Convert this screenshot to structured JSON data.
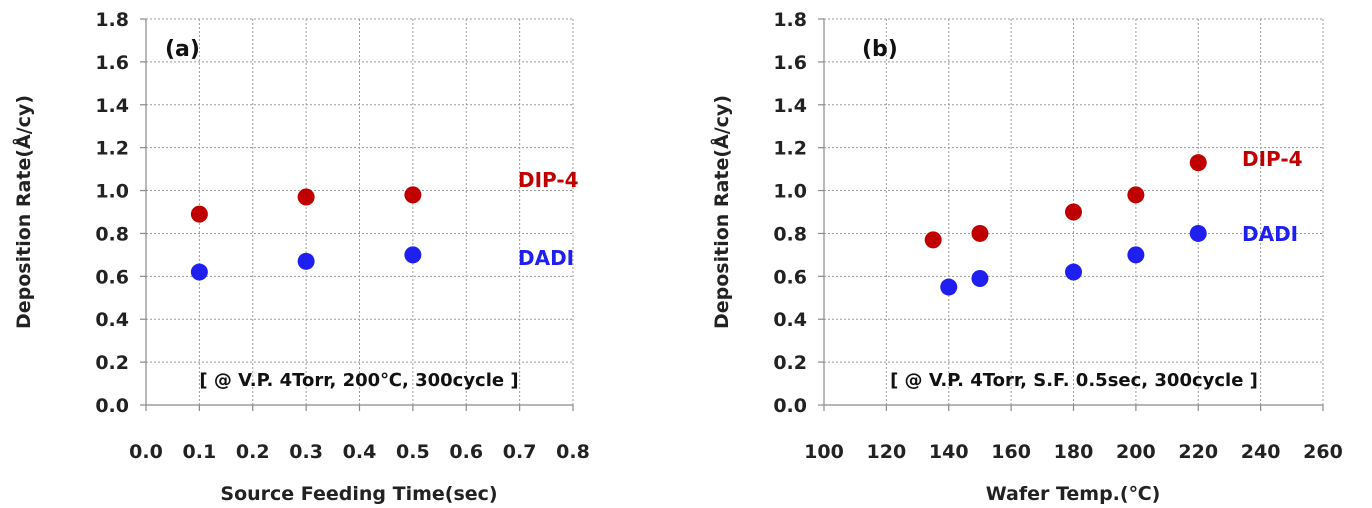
{
  "chart_data": [
    {
      "type": "scatter",
      "panel_label": "(a)",
      "xlabel": "Source Feeding Time(sec)",
      "ylabel": "Deposition Rate(Å/cy)",
      "xlim": [
        0.0,
        0.8
      ],
      "ylim": [
        0.0,
        1.8
      ],
      "xticks": [
        "0.0",
        "0.1",
        "0.2",
        "0.3",
        "0.4",
        "0.5",
        "0.6",
        "0.7",
        "0.8"
      ],
      "yticks": [
        "0.0",
        "0.2",
        "0.4",
        "0.6",
        "0.8",
        "1.0",
        "1.2",
        "1.4",
        "1.6",
        "1.8"
      ],
      "grid": true,
      "annotation": "[ @ V.P. 4Torr, 200℃, 300cycle ]",
      "series": [
        {
          "name": "DIP-4",
          "color": "#c00000",
          "x": [
            0.1,
            0.3,
            0.5
          ],
          "y": [
            0.89,
            0.97,
            0.98
          ]
        },
        {
          "name": "DADI",
          "color": "#1f1ff0",
          "x": [
            0.1,
            0.3,
            0.5
          ],
          "y": [
            0.62,
            0.67,
            0.7
          ]
        }
      ]
    },
    {
      "type": "scatter",
      "panel_label": "(b)",
      "xlabel": "Wafer Temp.(℃)",
      "ylabel": "Deposition Rate(Å/cy)",
      "xlim": [
        100,
        260
      ],
      "ylim": [
        0.0,
        1.8
      ],
      "xticks": [
        "100",
        "120",
        "140",
        "160",
        "180",
        "200",
        "220",
        "240",
        "260"
      ],
      "yticks": [
        "0.0",
        "0.2",
        "0.4",
        "0.6",
        "0.8",
        "1.0",
        "1.2",
        "1.4",
        "1.6",
        "1.8"
      ],
      "grid": true,
      "annotation": "[ @ V.P. 4Torr, S.F. 0.5sec, 300cycle ]",
      "series": [
        {
          "name": "DIP-4",
          "color": "#c00000",
          "x": [
            135,
            150,
            180,
            200,
            220
          ],
          "y": [
            0.77,
            0.8,
            0.9,
            0.98,
            1.13
          ]
        },
        {
          "name": "DADI",
          "color": "#1f1ff0",
          "x": [
            140,
            150,
            180,
            200,
            220
          ],
          "y": [
            0.55,
            0.59,
            0.62,
            0.7,
            0.8
          ]
        }
      ]
    }
  ]
}
